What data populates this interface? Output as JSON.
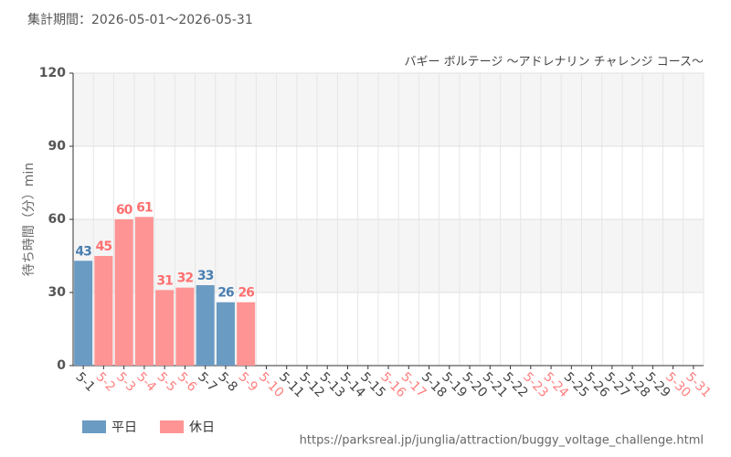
{
  "chart_data": {
    "type": "bar",
    "period": "集計期間：2026-05-01～2026-05-31",
    "title": "バギー ボルテージ ～アドレナリン チャレンジ コース～",
    "y_label": "待ち時間（分）min",
    "source": "https://parksreal.jp/junglia/attraction/buggy_voltage_challenge.html",
    "categories": [
      "5-1",
      "5-2",
      "5-3",
      "5-4",
      "5-5",
      "5-6",
      "5-7",
      "5-8",
      "5-9",
      "5-10",
      "5-11",
      "5-12",
      "5-13",
      "5-14",
      "5-15",
      "5-16",
      "5-17",
      "5-18",
      "5-19",
      "5-20",
      "5-21",
      "5-22",
      "5-23",
      "5-24",
      "5-25",
      "5-26",
      "5-27",
      "5-28",
      "5-29",
      "5-30",
      "5-31"
    ],
    "label_colors": [
      "#444444",
      "#ff8080",
      "#ff8080",
      "#ff8080",
      "#ff8080",
      "#ff8080",
      "#444444",
      "#444444",
      "#ff8080",
      "#ff8080",
      "#444444",
      "#444444",
      "#444444",
      "#444444",
      "#444444",
      "#ff8080",
      "#ff8080",
      "#444444",
      "#444444",
      "#444444",
      "#444444",
      "#444444",
      "#ff8080",
      "#ff8080",
      "#444444",
      "#444444",
      "#444444",
      "#444444",
      "#444444",
      "#ff8080",
      "#ff8080"
    ],
    "series": [
      {
        "name": "平日",
        "color": "#6a9bc3",
        "label_color": "#4a7fb0",
        "values": [
          43,
          null,
          null,
          null,
          null,
          null,
          33,
          26,
          null,
          null,
          null,
          null,
          null,
          null,
          null,
          null,
          null,
          null,
          null,
          null,
          null,
          null,
          null,
          null,
          null,
          null,
          null,
          null,
          null,
          null,
          null
        ]
      },
      {
        "name": "休日",
        "color": "#ff9494",
        "label_color": "#ff7070",
        "values": [
          null,
          45,
          60,
          61,
          31,
          32,
          null,
          null,
          26,
          null,
          null,
          null,
          null,
          null,
          null,
          null,
          null,
          null,
          null,
          null,
          null,
          null,
          null,
          null,
          null,
          null,
          null,
          null,
          null,
          null,
          null
        ]
      }
    ],
    "ylim": [
      0,
      120
    ],
    "yticks": [
      0,
      30,
      60,
      90,
      120
    ],
    "grid": true
  }
}
